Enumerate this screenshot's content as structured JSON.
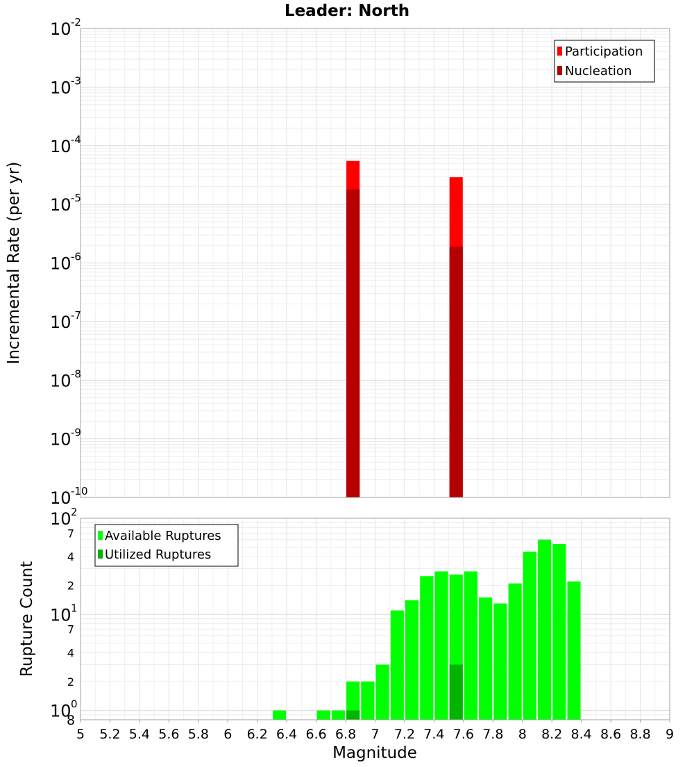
{
  "chart_data": [
    {
      "type": "bar",
      "title": "Leader: North",
      "xlabel": "",
      "ylabel": "Incremental Rate (per yr)",
      "yscale": "log",
      "ylim": [
        1e-10,
        0.01
      ],
      "xlim": [
        5,
        9
      ],
      "y_tick_labels": [
        {
          "value": 1e-10,
          "base": "10",
          "exp": "-10"
        },
        {
          "value": 1e-09,
          "base": "10",
          "exp": "-9"
        },
        {
          "value": 1e-08,
          "base": "10",
          "exp": "-8"
        },
        {
          "value": 1e-07,
          "base": "10",
          "exp": "-7"
        },
        {
          "value": 1e-06,
          "base": "10",
          "exp": "-6"
        },
        {
          "value": 1e-05,
          "base": "10",
          "exp": "-5"
        },
        {
          "value": 0.0001,
          "base": "10",
          "exp": "-4"
        },
        {
          "value": 0.001,
          "base": "10",
          "exp": "-3"
        },
        {
          "value": 0.01,
          "base": "10",
          "exp": "-2"
        }
      ],
      "bar_width": 0.09,
      "series": [
        {
          "name": "Participation",
          "color": "#ff0000",
          "x": [
            6.85,
            7.55
          ],
          "values": [
            5.5e-05,
            2.9e-05
          ]
        },
        {
          "name": "Nucleation",
          "color": "#b40000",
          "x": [
            6.85,
            7.55
          ],
          "values": [
            1.8e-05,
            1.9e-06
          ]
        }
      ],
      "legend": {
        "position": "top-right",
        "entries": [
          "Participation",
          "Nucleation"
        ]
      }
    },
    {
      "type": "bar",
      "title": "",
      "xlabel": "Magnitude",
      "ylabel": "Rupture Count",
      "yscale": "log",
      "ylim": [
        0.8,
        100
      ],
      "xlim": [
        5,
        9
      ],
      "x_ticks": [
        "5",
        "5.2",
        "5.4",
        "5.6",
        "5.8",
        "6",
        "6.2",
        "6.4",
        "6.6",
        "6.8",
        "7",
        "7.2",
        "7.4",
        "7.6",
        "7.8",
        "8",
        "8.2",
        "8.4",
        "8.6",
        "8.8",
        "9"
      ],
      "y_tick_labels": [
        {
          "value": 1,
          "base": "10",
          "exp": "0",
          "kind": "major"
        },
        {
          "value": 2,
          "label": "2",
          "kind": "minor"
        },
        {
          "value": 4,
          "label": "4",
          "kind": "minor"
        },
        {
          "value": 7,
          "label": "7",
          "kind": "minor"
        },
        {
          "value": 10,
          "base": "10",
          "exp": "1",
          "kind": "major"
        },
        {
          "value": 20,
          "label": "2",
          "kind": "minor"
        },
        {
          "value": 40,
          "label": "4",
          "kind": "minor"
        },
        {
          "value": 70,
          "label": "7",
          "kind": "minor"
        },
        {
          "value": 100,
          "base": "10",
          "exp": "2",
          "kind": "major"
        }
      ],
      "bottom_label": "8",
      "bar_width": 0.09,
      "series": [
        {
          "name": "Available Ruptures",
          "color": "#00ff00",
          "x": [
            6.35,
            6.65,
            6.75,
            6.85,
            6.95,
            7.05,
            7.15,
            7.25,
            7.35,
            7.45,
            7.55,
            7.65,
            7.75,
            7.85,
            7.95,
            8.05,
            8.15,
            8.25,
            8.35
          ],
          "values": [
            1,
            1,
            1,
            2,
            2,
            3,
            11,
            14,
            25,
            28,
            26,
            28,
            15,
            13,
            21,
            45,
            60,
            54,
            22
          ]
        },
        {
          "name": "Utilized Ruptures",
          "color": "#00b400",
          "x": [
            6.85,
            7.55
          ],
          "values": [
            1,
            3
          ]
        }
      ],
      "legend": {
        "position": "top-left",
        "entries": [
          "Available Ruptures",
          "Utilized Ruptures"
        ]
      }
    }
  ]
}
